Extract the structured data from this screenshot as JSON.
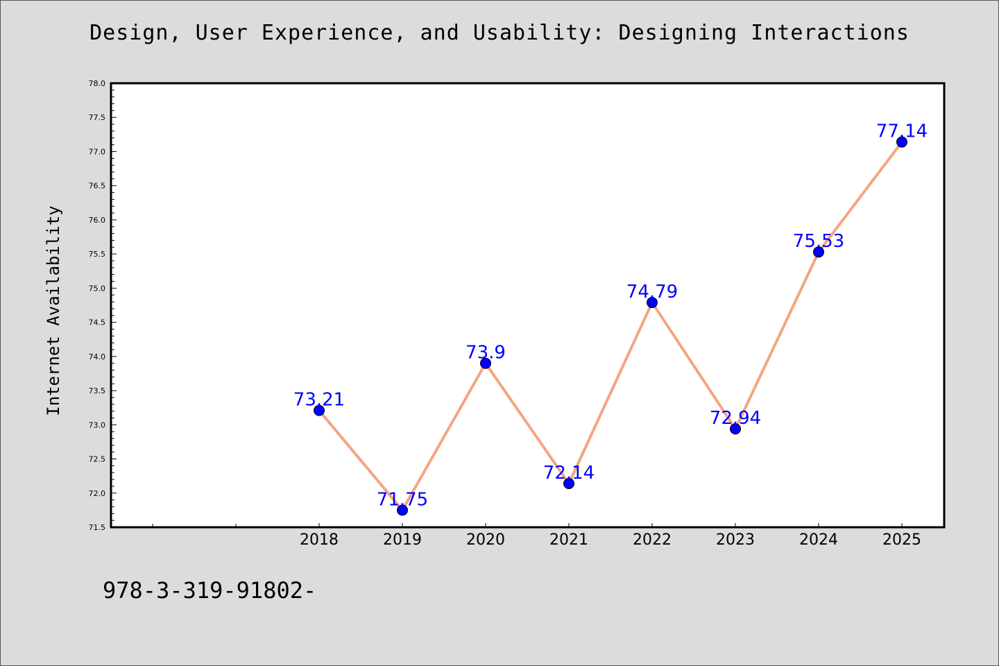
{
  "chart_data": {
    "type": "line",
    "title": "Design, User Experience, and Usability: Designing Interactions",
    "ylabel": "Internet Availability",
    "xlabel": "",
    "categories": [
      "2018",
      "2019",
      "2020",
      "2021",
      "2022",
      "2023",
      "2024",
      "2025"
    ],
    "values": [
      73.21,
      71.75,
      73.9,
      72.14,
      74.79,
      72.94,
      75.53,
      77.14
    ],
    "data_labels": [
      "73.21",
      "71.75",
      "73.9",
      "72.14",
      "74.79",
      "72.94",
      "75.53",
      "77.14"
    ],
    "ylim": [
      71.5,
      78.0
    ],
    "yticks": [
      "71.5",
      "72.0",
      "72.5",
      "73.0",
      "73.5",
      "74.0",
      "74.5",
      "75.0",
      "75.5",
      "76.0",
      "76.5",
      "77.0",
      "77.5",
      "78.0"
    ],
    "grid": false,
    "legend": "none",
    "colors": {
      "line": "#f4a582",
      "marker": "#0000ff",
      "label": "#0000ff"
    }
  },
  "footer": {
    "text": "978-3-319-91802-"
  }
}
